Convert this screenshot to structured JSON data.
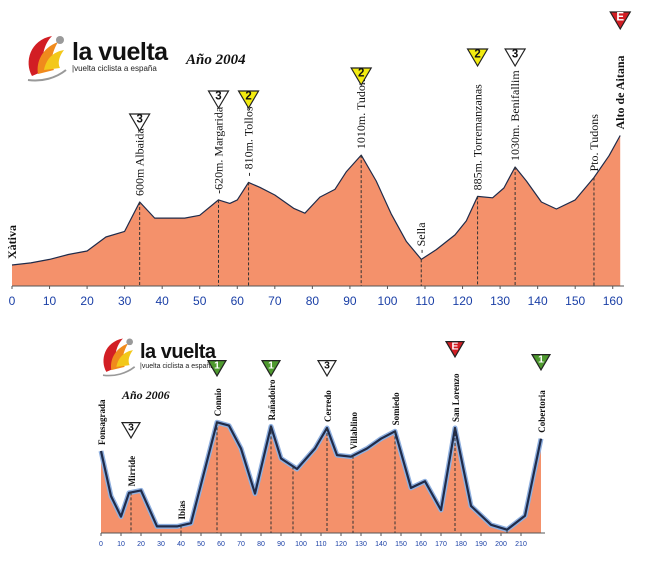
{
  "charts": {
    "top": {
      "year_label": "Año 2004",
      "brand": {
        "name": "la vuelta",
        "sub": "|vuelta ciclista a españa"
      }
    },
    "bottom": {
      "year_label": "Año 2006",
      "brand": {
        "name": "la vuelta",
        "sub": "|vuelta ciclista a españa"
      }
    }
  },
  "colors": {
    "profile_fill": "#f4916b",
    "profile_line": "#1f2b4a",
    "axis_text": "#1a3fa6",
    "cat_yellow": "#f3ec10",
    "cat_white": "#ffffff",
    "cat_green": "#4e9a2e",
    "cat_red": "#d21e24"
  },
  "chart_data": [
    {
      "type": "area",
      "x": [
        0,
        5,
        10,
        15,
        20,
        25,
        30,
        34,
        38,
        42,
        46,
        50,
        55,
        58,
        60,
        63,
        66,
        70,
        75,
        78,
        82,
        86,
        89,
        93,
        97,
        101,
        105,
        109,
        113,
        118,
        121,
        124,
        128,
        131,
        134,
        137,
        141,
        145,
        150,
        155,
        159,
        162
      ],
      "y": [
        30,
        33,
        38,
        45,
        50,
        70,
        78,
        120,
        97,
        97,
        97,
        101,
        123,
        118,
        123,
        148,
        141,
        130,
        111,
        104,
        127,
        138,
        163,
        187,
        150,
        103,
        64,
        38,
        52,
        73,
        93,
        128,
        126,
        140,
        170,
        150,
        120,
        110,
        123,
        155,
        186,
        215
      ],
      "xlim": [
        0,
        163
      ],
      "xticks": [
        0,
        10,
        20,
        30,
        40,
        50,
        60,
        70,
        80,
        90,
        100,
        110,
        120,
        130,
        140,
        150,
        160
      ],
      "grid": false,
      "labels": [
        {
          "x": 0,
          "text": "Xàtiva",
          "bold": true,
          "dashed": false
        },
        {
          "x": 34,
          "text": "600m Albaida",
          "bold": false,
          "dashed": true
        },
        {
          "x": 55,
          "text": "-620m. Margarida",
          "bold": false,
          "dashed": true
        },
        {
          "x": 63,
          "text": "- 810m. Tollos",
          "bold": false,
          "dashed": true
        },
        {
          "x": 93,
          "text": "1010m. Tudons",
          "bold": false,
          "dashed": true
        },
        {
          "x": 109,
          "text": "- Sella",
          "bold": false,
          "dashed": true
        },
        {
          "x": 124,
          "text": "885m. Torremanzanas",
          "bold": false,
          "dashed": true
        },
        {
          "x": 134,
          "text": "1030m. Benifallim",
          "bold": false,
          "dashed": true
        },
        {
          "x": 155,
          "text": "Pto. Tudons",
          "bold": false,
          "dashed": true
        },
        {
          "x": 162,
          "text": "Alto de Aitana",
          "bold": true,
          "dashed": false
        }
      ],
      "categories": [
        {
          "x": 34,
          "cat": "3",
          "color": "white"
        },
        {
          "x": 55,
          "cat": "3",
          "color": "white"
        },
        {
          "x": 63,
          "cat": "2",
          "color": "yellow"
        },
        {
          "x": 93,
          "cat": "2",
          "color": "yellow"
        },
        {
          "x": 124,
          "cat": "2",
          "color": "yellow"
        },
        {
          "x": 134,
          "cat": "3",
          "color": "white"
        },
        {
          "x": 162,
          "cat": "E",
          "color": "red"
        }
      ]
    },
    {
      "type": "area",
      "x": [
        0,
        5,
        10,
        14,
        20,
        28,
        38,
        45,
        52,
        58,
        64,
        70,
        77,
        85,
        90,
        98,
        107,
        113,
        118,
        125,
        133,
        140,
        147,
        155,
        162,
        170,
        177,
        185,
        195,
        203,
        212,
        220
      ],
      "y": [
        100,
        45,
        20,
        49,
        52,
        8,
        8,
        12,
        78,
        135,
        131,
        103,
        48,
        130,
        91,
        78,
        103,
        128,
        95,
        93,
        103,
        115,
        124,
        55,
        63,
        28,
        128,
        33,
        10,
        4,
        21,
        115
      ],
      "xlim": [
        0,
        222
      ],
      "xticks": [
        0,
        10,
        20,
        30,
        40,
        50,
        60,
        70,
        80,
        90,
        100,
        110,
        120,
        130,
        140,
        150,
        160,
        170,
        180,
        190,
        200,
        210
      ],
      "grid": false,
      "labels": [
        {
          "x": 0,
          "text": "Fonsagrada",
          "bold": true,
          "dashed": false
        },
        {
          "x": 15,
          "text": "Mirride",
          "bold": true,
          "dashed": true
        },
        {
          "x": 40,
          "text": "Ibias",
          "bold": true,
          "dashed": true
        },
        {
          "x": 58,
          "text": "Connio",
          "bold": true,
          "dashed": true
        },
        {
          "x": 85,
          "text": "Rañadoiro",
          "bold": true,
          "dashed": true
        },
        {
          "x": 96,
          "text": "",
          "bold": false,
          "dashed": true
        },
        {
          "x": 113,
          "text": "Cerredo",
          "bold": true,
          "dashed": true
        },
        {
          "x": 126,
          "text": "Villablino",
          "bold": true,
          "dashed": true
        },
        {
          "x": 147,
          "text": "Somiedo",
          "bold": true,
          "dashed": true
        },
        {
          "x": 177,
          "text": "San Lorenzo",
          "bold": true,
          "dashed": true
        },
        {
          "x": 203,
          "text": "",
          "bold": false,
          "dashed": true
        },
        {
          "x": 220,
          "text": "Cobertoria",
          "bold": true,
          "dashed": false
        }
      ],
      "categories": [
        {
          "x": 15,
          "cat": "3",
          "color": "white"
        },
        {
          "x": 58,
          "cat": "1",
          "color": "green"
        },
        {
          "x": 85,
          "cat": "1",
          "color": "green"
        },
        {
          "x": 113,
          "cat": "3",
          "color": "white"
        },
        {
          "x": 177,
          "cat": "E",
          "color": "red"
        },
        {
          "x": 220,
          "cat": "1",
          "color": "green"
        }
      ]
    }
  ]
}
